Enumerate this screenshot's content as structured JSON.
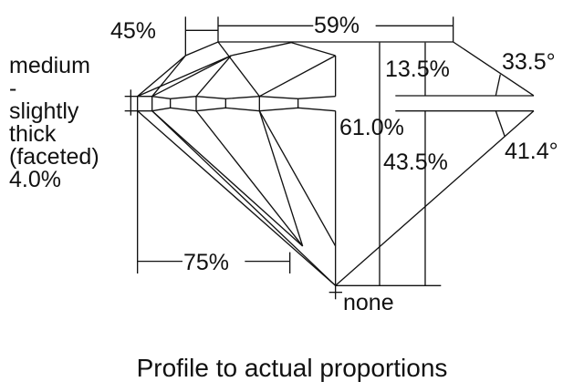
{
  "labels": {
    "crown_angle_pct": "45%",
    "table": "59%",
    "girdle_lines": [
      "medium",
      "-",
      "slightly",
      "thick",
      "(faceted)",
      "4.0%"
    ],
    "crown_height": "13.5%",
    "crown_angle": "33.5°",
    "total_depth": "61.0%",
    "pavilion_depth": "43.5%",
    "pavilion_angle": "41.4°",
    "lower_half": "75%",
    "culet": "none"
  },
  "caption": "Profile to actual proportions",
  "colors": {
    "line": "#111111",
    "background": "#ffffff"
  }
}
